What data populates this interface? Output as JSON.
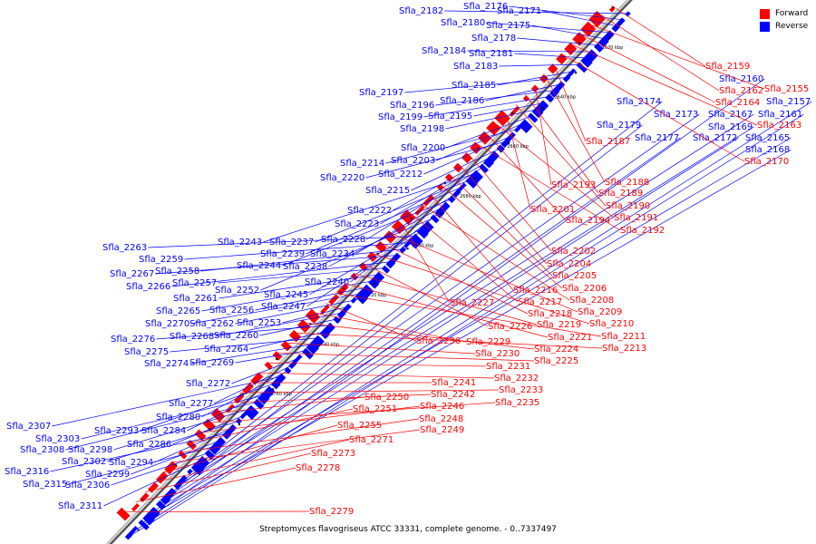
{
  "legend": [
    {
      "label": "Forward",
      "color": "#ff0000"
    },
    {
      "label": "Reverse",
      "color": "#0000ff"
    }
  ],
  "caption": "Streptomyces flavogriseus ATCC 33331, complete genome. - 0..7337497",
  "colors": {
    "forward": "#ff0000",
    "reverse": "#0000ff",
    "backbone": "#555555"
  },
  "ticks": [
    "2620 kbp",
    "2640 kbp",
    "2660 kbp",
    "2680 kbp",
    "2700 kbp",
    "2720 kbp",
    "2740 kbp",
    "2760 kbp"
  ],
  "reverse_genes": [
    "Sfla_2182",
    "Sfla_2176",
    "Sfla_2171",
    "Sfla_2180",
    "Sfla_2175",
    "Sfla_2178",
    "Sfla_2184",
    "Sfla_2181",
    "Sfla_2183",
    "Sfla_2185",
    "Sfla_2197",
    "Sfla_2186",
    "Sfla_2196",
    "Sfla_2199",
    "Sfla_2195",
    "Sfla_2198",
    "Sfla_2200",
    "Sfla_2203",
    "Sfla_2214",
    "Sfla_2212",
    "Sfla_2220",
    "Sfla_2215",
    "Sfla_2222",
    "Sfla_2223",
    "Sfla_2228",
    "Sfla_2243",
    "Sfla_2237",
    "Sfla_2239",
    "Sfla_2234",
    "Sfla_2244",
    "Sfla_2238",
    "Sfla_2240",
    "Sfla_2252",
    "Sfla_2245",
    "Sfla_2247",
    "Sfla_2263",
    "Sfla_2259",
    "Sfla_2258",
    "Sfla_2267",
    "Sfla_2266",
    "Sfla_2257",
    "Sfla_2261",
    "Sfla_2265",
    "Sfla_2256",
    "Sfla_2270",
    "Sfla_2262",
    "Sfla_2253",
    "Sfla_2268",
    "Sfla_2260",
    "Sfla_2276",
    "Sfla_2264",
    "Sfla_2275",
    "Sfla_2274",
    "Sfla_2269",
    "Sfla_2272",
    "Sfla_2277",
    "Sfla_2280",
    "Sfla_2307",
    "Sfla_2293",
    "Sfla_2284",
    "Sfla_2303",
    "Sfla_2308",
    "Sfla_2298",
    "Sfla_2286",
    "Sfla_2302",
    "Sfla_2294",
    "Sfla_2316",
    "Sfla_2299",
    "Sfla_2315",
    "Sfla_2306",
    "Sfla_2311",
    "Sfla_2174",
    "Sfla_2173",
    "Sfla_2167",
    "Sfla_2169",
    "Sfla_2179",
    "Sfla_2177",
    "Sfla_2172",
    "Sfla_2165",
    "Sfla_2168",
    "Sfla_2160",
    "Sfla_2157",
    "Sfla_2161"
  ],
  "forward_genes": [
    "Sfla_2159",
    "Sfla_2162",
    "Sfla_2155",
    "Sfla_2164",
    "Sfla_2163",
    "Sfla_2170",
    "Sfla_2187",
    "Sfla_2188",
    "Sfla_2193",
    "Sfla_2189",
    "Sfla_2190",
    "Sfla_2201",
    "Sfla_2191",
    "Sfla_2194",
    "Sfla_2192",
    "Sfla_2202",
    "Sfla_2204",
    "Sfla_2205",
    "Sfla_2206",
    "Sfla_2216",
    "Sfla_2208",
    "Sfla_2217",
    "Sfla_2227",
    "Sfla_2209",
    "Sfla_2218",
    "Sfla_2210",
    "Sfla_2226",
    "Sfla_2219",
    "Sfla_2221",
    "Sfla_2211",
    "Sfla_2236",
    "Sfla_2229",
    "Sfla_2224",
    "Sfla_2213",
    "Sfla_2230",
    "Sfla_2225",
    "Sfla_2231",
    "Sfla_2232",
    "Sfla_2241",
    "Sfla_2233",
    "Sfla_2242",
    "Sfla_2250",
    "Sfla_2235",
    "Sfla_2246",
    "Sfla_2251",
    "Sfla_2248",
    "Sfla_2249",
    "Sfla_2255",
    "Sfla_2271",
    "Sfla_2273",
    "Sfla_2278",
    "Sfla_2279"
  ]
}
